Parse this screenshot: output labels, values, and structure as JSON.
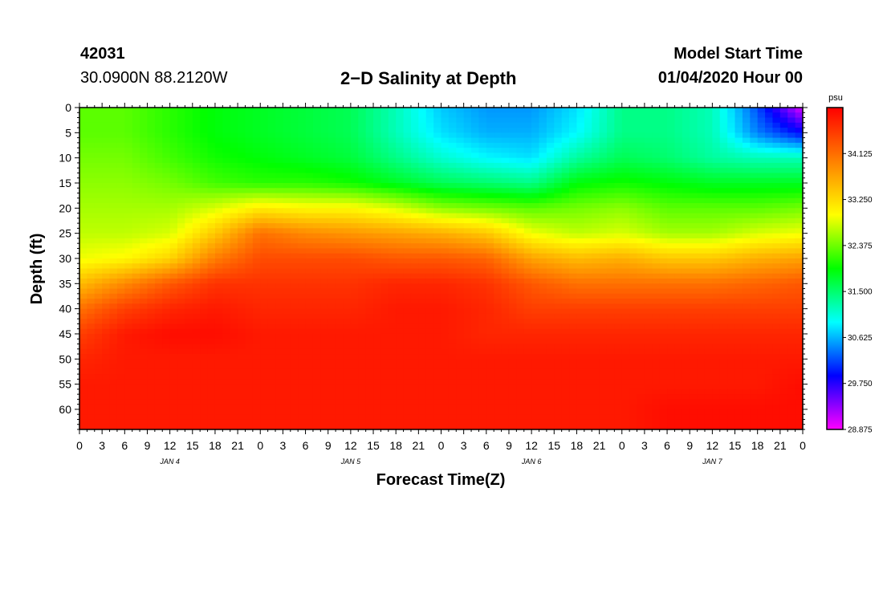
{
  "header": {
    "station_id": "42031",
    "coords": "30.0900N 88.2120W",
    "title": "2−D Salinity at Depth",
    "start_label": "Model Start Time",
    "start_value": "01/04/2020 Hour 00"
  },
  "chart_data": {
    "type": "heatmap",
    "title": "2−D Salinity at Depth",
    "xlabel": "Forecast Time(Z)",
    "ylabel": "Depth (ft)",
    "x_hours": [
      0,
      96
    ],
    "x_ticks": [
      "0",
      "3",
      "6",
      "9",
      "12",
      "15",
      "18",
      "21",
      "0",
      "3",
      "6",
      "9",
      "12",
      "15",
      "18",
      "21",
      "0",
      "3",
      "6",
      "9",
      "12",
      "15",
      "18",
      "21",
      "0",
      "3",
      "6",
      "9",
      "12",
      "15",
      "18",
      "21",
      "0"
    ],
    "day_labels": [
      {
        "text": "JAN 4",
        "hour": 12
      },
      {
        "text": "JAN 5",
        "hour": 36
      },
      {
        "text": "JAN 6",
        "hour": 60
      },
      {
        "text": "JAN 7",
        "hour": 84
      }
    ],
    "ylim": [
      0,
      64
    ],
    "y_ticks": [
      "0",
      "5",
      "10",
      "15",
      "20",
      "25",
      "30",
      "35",
      "40",
      "45",
      "50",
      "55",
      "60"
    ],
    "colorbar": {
      "unit": "psu",
      "range": [
        28.875,
        35.0
      ],
      "ticks": [
        "34.125",
        "33.250",
        "32.375",
        "31.500",
        "30.625",
        "29.750",
        "28.875"
      ],
      "colors": [
        "#ff00ff",
        "#0000ff",
        "#00ffff",
        "#00ff00",
        "#ffff00",
        "#ff8000",
        "#ff0000"
      ]
    },
    "salinity_grid": {
      "hours": [
        0,
        6,
        12,
        18,
        24,
        30,
        36,
        42,
        48,
        54,
        60,
        66,
        72,
        78,
        84,
        90,
        96
      ],
      "depths": [
        0,
        5,
        10,
        15,
        20,
        25,
        30,
        35,
        40,
        45,
        50,
        55,
        60,
        64
      ],
      "values": [
        [
          32.3,
          32.3,
          32.1,
          31.9,
          31.8,
          31.7,
          31.6,
          31.2,
          30.7,
          30.5,
          30.5,
          30.8,
          31.4,
          31.4,
          31.2,
          30.2,
          29.0
        ],
        [
          32.3,
          32.3,
          32.1,
          31.9,
          31.8,
          31.7,
          31.6,
          31.2,
          30.8,
          30.6,
          30.6,
          30.9,
          31.4,
          31.4,
          31.2,
          30.4,
          29.9
        ],
        [
          32.4,
          32.4,
          32.2,
          32.0,
          31.9,
          31.8,
          31.7,
          31.4,
          31.1,
          30.9,
          30.8,
          31.3,
          31.6,
          31.5,
          31.3,
          31.2,
          31.2
        ],
        [
          32.5,
          32.5,
          32.4,
          32.2,
          32.1,
          32.1,
          32.0,
          31.8,
          31.6,
          31.5,
          31.4,
          31.9,
          32.0,
          31.9,
          31.8,
          31.8,
          31.8
        ],
        [
          32.6,
          32.6,
          32.6,
          32.8,
          33.1,
          33.0,
          33.0,
          32.8,
          32.5,
          32.4,
          32.3,
          32.4,
          32.5,
          32.3,
          32.3,
          32.3,
          32.4
        ],
        [
          32.7,
          32.7,
          32.8,
          33.4,
          34.1,
          33.9,
          33.8,
          33.7,
          33.6,
          33.4,
          32.9,
          32.7,
          32.8,
          32.6,
          32.6,
          32.8,
          32.9
        ],
        [
          32.9,
          33.0,
          33.3,
          34.0,
          34.4,
          34.4,
          34.4,
          34.3,
          34.3,
          34.2,
          33.7,
          33.5,
          33.6,
          33.4,
          33.4,
          33.6,
          33.7
        ],
        [
          33.5,
          33.9,
          34.3,
          34.6,
          34.6,
          34.6,
          34.6,
          34.7,
          34.7,
          34.6,
          34.3,
          34.1,
          34.1,
          34.1,
          34.1,
          34.2,
          34.3
        ],
        [
          34.1,
          34.5,
          34.7,
          34.8,
          34.7,
          34.7,
          34.7,
          34.8,
          34.8,
          34.7,
          34.5,
          34.5,
          34.5,
          34.5,
          34.5,
          34.5,
          34.5
        ],
        [
          34.5,
          34.8,
          34.9,
          34.9,
          34.8,
          34.8,
          34.8,
          34.8,
          34.8,
          34.7,
          34.7,
          34.7,
          34.7,
          34.7,
          34.7,
          34.7,
          34.7
        ],
        [
          34.7,
          34.8,
          34.8,
          34.8,
          34.8,
          34.8,
          34.8,
          34.8,
          34.8,
          34.8,
          34.8,
          34.8,
          34.8,
          34.8,
          34.8,
          34.8,
          34.8
        ],
        [
          34.8,
          34.8,
          34.8,
          34.8,
          34.8,
          34.8,
          34.8,
          34.8,
          34.8,
          34.8,
          34.8,
          34.8,
          34.8,
          34.8,
          34.8,
          34.8,
          34.9
        ],
        [
          34.8,
          34.8,
          34.8,
          34.8,
          34.8,
          34.8,
          34.8,
          34.8,
          34.8,
          34.8,
          34.8,
          34.8,
          34.8,
          34.9,
          34.9,
          34.9,
          34.9
        ],
        [
          34.8,
          34.8,
          34.8,
          34.8,
          34.8,
          34.8,
          34.8,
          34.8,
          34.8,
          34.8,
          34.8,
          34.8,
          34.8,
          34.9,
          34.9,
          34.9,
          34.9
        ]
      ]
    }
  }
}
